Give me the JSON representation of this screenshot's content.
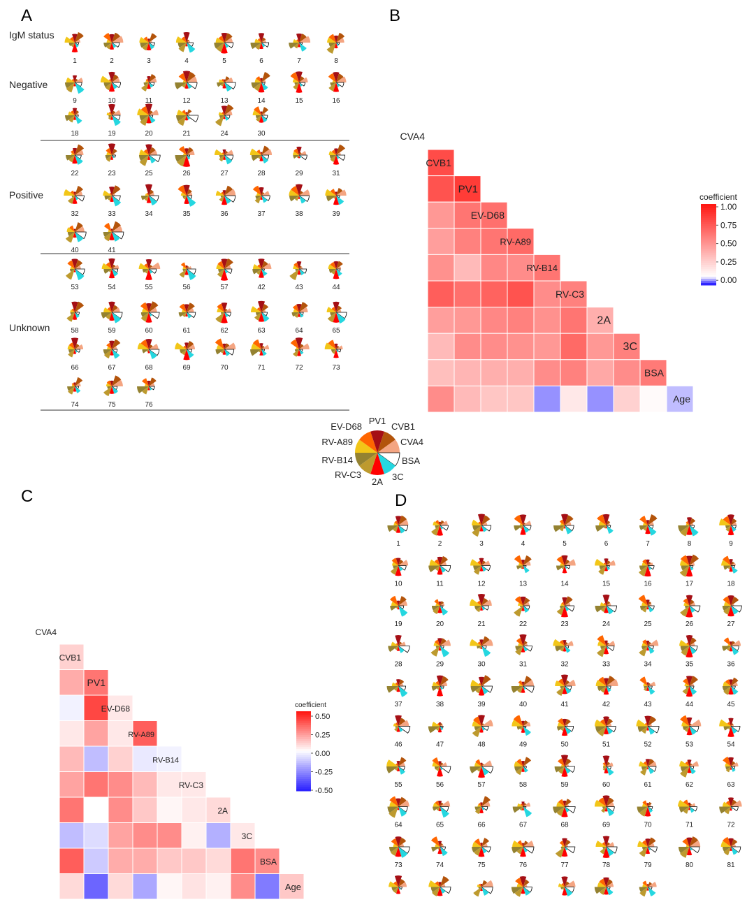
{
  "panel_labels": {
    "a": "A",
    "b": "B",
    "c": "C",
    "d": "D"
  },
  "colors": {
    "EV-D68": "#ff6600",
    "PV1": "#a50f15",
    "CVB1": "#b3540b",
    "CVA4": "#f4a582",
    "BSA": "#ffffff",
    "3C": "#25d7e0",
    "2A": "#ff0000",
    "RV-C3": "#bd9a2e",
    "RV-B14": "#948231",
    "RV-A89": "#f2c618",
    "heat_high": "#ff0000",
    "heat_mid": "#ffffff",
    "heat_low": "#0000ff"
  },
  "key": {
    "labels": [
      "PV1",
      "CVB1",
      "CVA4",
      "BSA",
      "3C",
      "2A",
      "RV-C3",
      "RV-B14",
      "RV-A89",
      "EV-D68"
    ],
    "colors": [
      "#a50f15",
      "#b3540b",
      "#f4a582",
      "#ffffff",
      "#25d7e0",
      "#ff0000",
      "#bd9a2e",
      "#948231",
      "#f2c618",
      "#ff6600"
    ]
  },
  "panel_a": {
    "groups": [
      {
        "label": "IgM status",
        "ids": [
          "1",
          "2",
          "3",
          "4",
          "5",
          "6",
          "7",
          "8"
        ]
      },
      {
        "label": "Negative",
        "ids": [
          "9",
          "10",
          "11",
          "12",
          "13",
          "14",
          "15",
          "16",
          "18",
          "19",
          "20",
          "21",
          "24",
          "30"
        ]
      },
      {
        "label": "Positive",
        "ids": [
          "22",
          "23",
          "25",
          "26",
          "27",
          "28",
          "29",
          "31",
          "32",
          "33",
          "34",
          "35",
          "36",
          "37",
          "38",
          "39",
          "40",
          "41"
        ]
      },
      {
        "label": "Unknown",
        "ids": [
          "53",
          "54",
          "55",
          "56",
          "57",
          "42",
          "43",
          "44",
          "58",
          "59",
          "60",
          "61",
          "62",
          "63",
          "64",
          "65",
          "66",
          "67",
          "68",
          "69",
          "70",
          "71",
          "72",
          "73",
          "74",
          "75",
          "76"
        ]
      }
    ]
  },
  "panel_d": {
    "ids": [
      "1",
      "2",
      "3",
      "4",
      "5",
      "6",
      "7",
      "8",
      "9",
      "10",
      "11",
      "12",
      "13",
      "14",
      "15",
      "16",
      "17",
      "18",
      "19",
      "20",
      "21",
      "22",
      "23",
      "24",
      "25",
      "26",
      "27",
      "28",
      "29",
      "30",
      "31",
      "32",
      "33",
      "34",
      "35",
      "36",
      "37",
      "38",
      "39",
      "40",
      "41",
      "42",
      "43",
      "44",
      "45",
      "46",
      "47",
      "48",
      "49",
      "50",
      "51",
      "52",
      "53",
      "54",
      "55",
      "56",
      "57",
      "58",
      "59",
      "60",
      "61",
      "62",
      "63",
      "64",
      "65",
      "66",
      "67",
      "68",
      "69",
      "70",
      "71",
      "72",
      "73",
      "74",
      "75",
      "76",
      "77",
      "78",
      "79",
      "80",
      "81",
      "82",
      "83",
      "84",
      "85",
      "86",
      "87",
      "88"
    ]
  },
  "chart_data": [
    {
      "type": "heatmap",
      "panel": "B",
      "variables": [
        "CVA4",
        "CVB1",
        "PV1",
        "EV-D68",
        "RV-A89",
        "RV-B14",
        "RV-C3",
        "2A",
        "3C",
        "BSA",
        "Age"
      ],
      "matrix": [
        [
          null,
          null,
          null,
          null,
          null,
          null,
          null,
          null,
          null,
          null,
          null
        ],
        [
          0.78,
          null,
          null,
          null,
          null,
          null,
          null,
          null,
          null,
          null,
          null
        ],
        [
          0.75,
          0.85,
          null,
          null,
          null,
          null,
          null,
          null,
          null,
          null,
          null
        ],
        [
          0.45,
          0.6,
          0.62,
          null,
          null,
          null,
          null,
          null,
          null,
          null,
          null
        ],
        [
          0.42,
          0.55,
          0.6,
          0.65,
          null,
          null,
          null,
          null,
          null,
          null,
          null
        ],
        [
          0.48,
          0.3,
          0.52,
          0.5,
          0.6,
          null,
          null,
          null,
          null,
          null,
          null
        ],
        [
          0.7,
          0.62,
          0.68,
          0.75,
          0.5,
          0.55,
          null,
          null,
          null,
          null,
          null
        ],
        [
          0.42,
          0.45,
          0.52,
          0.55,
          0.48,
          0.6,
          0.35,
          null,
          null,
          null,
          null
        ],
        [
          0.3,
          0.5,
          0.5,
          0.48,
          0.45,
          0.65,
          0.45,
          0.55,
          null,
          null,
          null
        ],
        [
          0.28,
          0.32,
          0.35,
          0.35,
          0.5,
          0.55,
          0.38,
          0.5,
          0.58,
          null,
          null
        ],
        [
          0.5,
          0.3,
          0.25,
          0.25,
          -0.05,
          0.1,
          -0.05,
          0.2,
          0.02,
          -0.03,
          null
        ]
      ],
      "legend_title": "coefficient",
      "legend_ticks": [
        "1.00",
        "0.75",
        "0.50",
        "0.25",
        "0.00"
      ],
      "range": [
        -0.1,
        1.0
      ]
    },
    {
      "type": "heatmap",
      "panel": "C",
      "variables": [
        "CVA4",
        "CVB1",
        "PV1",
        "EV-D68",
        "RV-A89",
        "RV-B14",
        "RV-C3",
        "2A",
        "3C",
        "BSA",
        "Age"
      ],
      "matrix": [
        [
          null,
          null,
          null,
          null,
          null,
          null,
          null,
          null,
          null,
          null,
          null
        ],
        [
          0.1,
          null,
          null,
          null,
          null,
          null,
          null,
          null,
          null,
          null,
          null
        ],
        [
          0.18,
          0.3,
          null,
          null,
          null,
          null,
          null,
          null,
          null,
          null,
          null
        ],
        [
          -0.03,
          0.4,
          0.05,
          null,
          null,
          null,
          null,
          null,
          null,
          null,
          null
        ],
        [
          0.05,
          0.2,
          0.05,
          0.35,
          null,
          null,
          null,
          null,
          null,
          null,
          null
        ],
        [
          0.15,
          -0.15,
          0.1,
          -0.05,
          -0.03,
          null,
          null,
          null,
          null,
          null,
          null
        ],
        [
          0.2,
          0.3,
          0.25,
          0.15,
          0.05,
          0.05,
          null,
          null,
          null,
          null,
          null
        ],
        [
          0.3,
          0.0,
          0.25,
          0.12,
          0.02,
          0.05,
          0.08,
          null,
          null,
          null,
          null
        ],
        [
          -0.15,
          -0.08,
          0.2,
          0.25,
          0.25,
          0.03,
          -0.18,
          0.05,
          null,
          null,
          null
        ],
        [
          0.35,
          -0.12,
          0.18,
          0.18,
          0.12,
          0.12,
          0.08,
          0.3,
          0.25,
          null,
          null
        ],
        [
          0.08,
          -0.35,
          0.08,
          -0.2,
          0.02,
          0.06,
          0.03,
          0.25,
          -0.3,
          0.12,
          null
        ]
      ],
      "legend_title": "coefficient",
      "legend_ticks": [
        "0.50",
        "0.25",
        "0.00",
        "-0.25",
        "-0.50"
      ],
      "range": [
        -0.5,
        0.5
      ]
    }
  ]
}
